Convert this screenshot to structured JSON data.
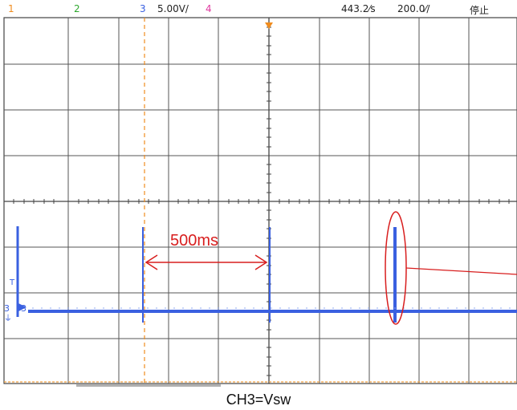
{
  "header": {
    "ch1": "1",
    "ch2": "2",
    "ch3": "3",
    "ch3_scale": "5.00V/",
    "ch4": "4",
    "sample_rate": "443.2⁄s",
    "time_div": "200.0⁄/",
    "status": "停止"
  },
  "markers": {
    "ch3_left": "3",
    "ground": "⏚",
    "trigger": "T"
  },
  "annotation": {
    "interval": "500ms"
  },
  "caption": "CH3=Vsw",
  "colors": {
    "ch1": "#f08c1e",
    "ch2": "#2ea82e",
    "ch3": "#3a60e0",
    "ch4": "#e03aa0",
    "annotation": "#d81e1e",
    "grid": "#555555"
  }
}
